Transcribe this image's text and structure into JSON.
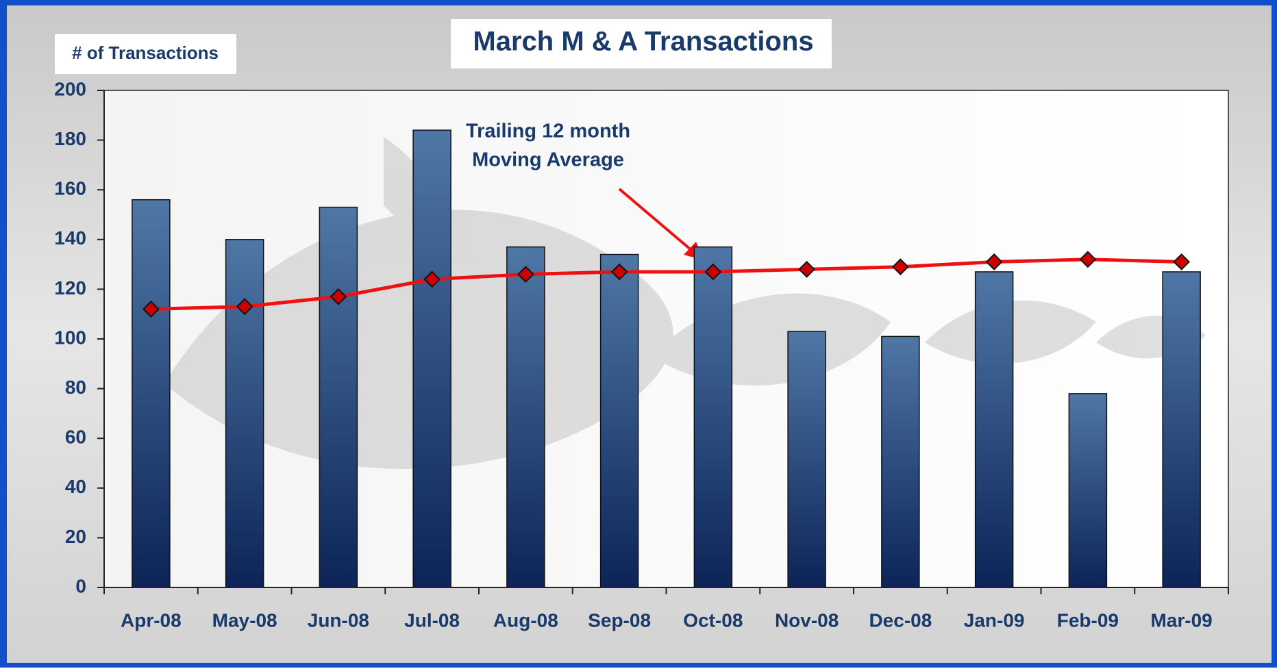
{
  "chart_data": {
    "type": "bar",
    "title": "March M & A Transactions",
    "y_label": "# of Transactions",
    "annotation": [
      "Trailing 12 month",
      "Moving Average"
    ],
    "categories": [
      "Apr-08",
      "May-08",
      "Jun-08",
      "Jul-08",
      "Aug-08",
      "Sep-08",
      "Oct-08",
      "Nov-08",
      "Dec-08",
      "Jan-09",
      "Feb-09",
      "Mar-09"
    ],
    "series": [
      {
        "type": "bar",
        "color": "#2f5587",
        "values": [
          156,
          140,
          153,
          184,
          137,
          134,
          137,
          103,
          101,
          127,
          78,
          127
        ]
      },
      {
        "type": "line",
        "color": "#ee1111",
        "values": [
          112,
          113,
          117,
          124,
          126,
          127,
          127,
          128,
          129,
          131,
          132,
          131
        ]
      }
    ],
    "ylim": [
      0,
      200
    ],
    "yticks": [
      0,
      20,
      40,
      60,
      80,
      100,
      120,
      140,
      160,
      180,
      200
    ],
    "grid": false
  }
}
